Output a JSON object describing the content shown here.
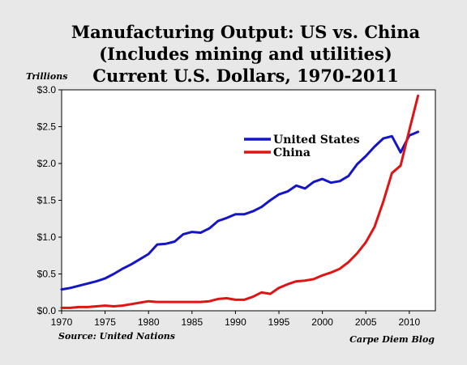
{
  "chart_data": {
    "type": "line",
    "title_lines": [
      "Manufacturing Output: US vs. China",
      "(Includes mining and utilities)",
      "Current U.S. Dollars, 1970-2011"
    ],
    "ylabel": "Trillions",
    "source": "Source: United Nations",
    "credit": "Carpe Diem Blog",
    "xlim": [
      1970,
      2013
    ],
    "ylim": [
      0,
      3.0
    ],
    "x_ticks": [
      1970,
      1975,
      1980,
      1985,
      1990,
      1995,
      2000,
      2005,
      2010
    ],
    "x_tick_labels": [
      "1970",
      "1975",
      "1980",
      "1985",
      "1990",
      "1995",
      "2000",
      "2005",
      "2010"
    ],
    "y_ticks": [
      0,
      0.5,
      1.0,
      1.5,
      2.0,
      2.5,
      3.0
    ],
    "y_tick_labels": [
      "$0.0",
      "$0.5",
      "$1.0",
      "$1.5",
      "$2.0",
      "$2.5",
      "$3.0"
    ],
    "legend_position": "upper-middle",
    "grid": false,
    "x": [
      1970,
      1971,
      1972,
      1973,
      1974,
      1975,
      1976,
      1977,
      1978,
      1979,
      1980,
      1981,
      1982,
      1983,
      1984,
      1985,
      1986,
      1987,
      1988,
      1989,
      1990,
      1991,
      1992,
      1993,
      1994,
      1995,
      1996,
      1997,
      1998,
      1999,
      2000,
      2001,
      2002,
      2003,
      2004,
      2005,
      2006,
      2007,
      2008,
      2009,
      2010,
      2011
    ],
    "series": [
      {
        "name": "United States",
        "color": "#1414c8",
        "values": [
          0.29,
          0.31,
          0.34,
          0.37,
          0.4,
          0.44,
          0.5,
          0.57,
          0.63,
          0.7,
          0.77,
          0.9,
          0.91,
          0.94,
          1.04,
          1.07,
          1.06,
          1.12,
          1.22,
          1.26,
          1.31,
          1.31,
          1.35,
          1.41,
          1.5,
          1.58,
          1.62,
          1.7,
          1.66,
          1.75,
          1.79,
          1.74,
          1.76,
          1.83,
          1.99,
          2.1,
          2.23,
          2.34,
          2.37,
          2.15,
          2.38,
          2.43
        ]
      },
      {
        "name": "China",
        "color": "#e01414",
        "values": [
          0.04,
          0.04,
          0.05,
          0.05,
          0.06,
          0.07,
          0.06,
          0.07,
          0.09,
          0.11,
          0.13,
          0.12,
          0.12,
          0.12,
          0.12,
          0.12,
          0.12,
          0.13,
          0.16,
          0.17,
          0.15,
          0.15,
          0.19,
          0.25,
          0.23,
          0.31,
          0.36,
          0.4,
          0.41,
          0.43,
          0.48,
          0.52,
          0.57,
          0.66,
          0.78,
          0.93,
          1.14,
          1.48,
          1.87,
          1.97,
          2.45,
          2.92
        ]
      }
    ]
  }
}
